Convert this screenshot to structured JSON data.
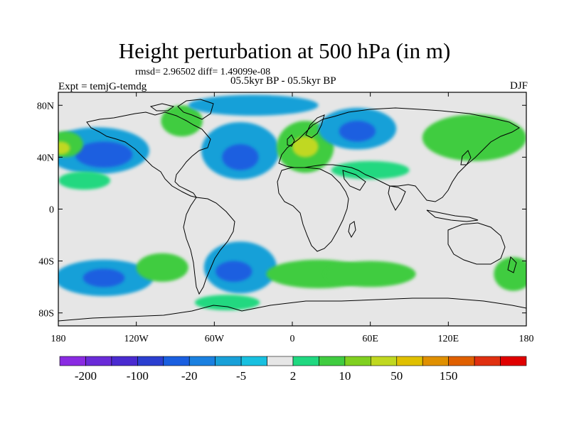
{
  "title": "Height perturbation at 500 hPa (in m)",
  "rmsd_line": "rmsd= 2.96502 diff= 1.49099e-08",
  "period_line": "05.5kyr BP - 05.5kyr BP",
  "expt_label": "Expt = temjG-temdg",
  "season": "DJF",
  "map_data": {
    "projection": "cylindrical-equidistant",
    "lon_range": [
      -180,
      180
    ],
    "lat_range": [
      -90,
      90
    ],
    "lat_ticks": [
      {
        "lat": 80,
        "label": "80N"
      },
      {
        "lat": 40,
        "label": "40N"
      },
      {
        "lat": 0,
        "label": "0"
      },
      {
        "lat": -40,
        "label": "40S"
      },
      {
        "lat": -80,
        "label": "80S"
      }
    ],
    "lon_ticks": [
      {
        "lon": -180,
        "label": "180"
      },
      {
        "lon": -120,
        "label": "120W"
      },
      {
        "lon": -60,
        "label": "60W"
      },
      {
        "lon": 0,
        "label": "0"
      },
      {
        "lon": 60,
        "label": "60E"
      },
      {
        "lon": 120,
        "label": "120E"
      },
      {
        "lon": 180,
        "label": "180"
      }
    ],
    "colorbar": {
      "colors": [
        "#8a2be2",
        "#6a2bd8",
        "#4a2bd0",
        "#2b3fd0",
        "#1a5fe0",
        "#1a80e0",
        "#18a0d8",
        "#18c0e0",
        "#e6e6e6",
        "#20d880",
        "#40cc40",
        "#80d020",
        "#c0d820",
        "#e0c000",
        "#e09000",
        "#e06000",
        "#e03010",
        "#e00000"
      ],
      "labels": [
        {
          "slot": 1,
          "text": "-200"
        },
        {
          "slot": 3,
          "text": "-100"
        },
        {
          "slot": 5,
          "text": "-20"
        },
        {
          "slot": 7,
          "text": "-5"
        },
        {
          "slot": 9,
          "text": "2"
        },
        {
          "slot": 11,
          "text": "10"
        },
        {
          "slot": 13,
          "text": "50"
        },
        {
          "slot": 15,
          "text": "150"
        }
      ]
    },
    "anomaly_regions": [
      {
        "name": "n-pacific-low",
        "lon": -150,
        "lat": 45,
        "rx": 40,
        "ry": 18,
        "level": -5
      },
      {
        "name": "n-pacific-low-core",
        "lon": -145,
        "lat": 42,
        "rx": 22,
        "ry": 10,
        "level": -20
      },
      {
        "name": "alaska-high",
        "lon": -175,
        "lat": 50,
        "rx": 14,
        "ry": 10,
        "level": 10
      },
      {
        "name": "alaska-high-core",
        "lon": -178,
        "lat": 47,
        "rx": 7,
        "ry": 5,
        "level": 50
      },
      {
        "name": "canada-high",
        "lon": -85,
        "lat": 68,
        "rx": 16,
        "ry": 12,
        "level": 10
      },
      {
        "name": "n-atlantic-low",
        "lon": -40,
        "lat": 45,
        "rx": 30,
        "ry": 22,
        "level": -5
      },
      {
        "name": "n-atlantic-low-core",
        "lon": -40,
        "lat": 40,
        "rx": 14,
        "ry": 10,
        "level": -20
      },
      {
        "name": "europe-high",
        "lon": 10,
        "lat": 48,
        "rx": 22,
        "ry": 20,
        "level": 10
      },
      {
        "name": "europe-high-core",
        "lon": 10,
        "lat": 48,
        "rx": 10,
        "ry": 8,
        "level": 50
      },
      {
        "name": "siberia-low",
        "lon": 50,
        "lat": 62,
        "rx": 30,
        "ry": 16,
        "level": -5
      },
      {
        "name": "siberia-low-core",
        "lon": 50,
        "lat": 60,
        "rx": 14,
        "ry": 8,
        "level": -20
      },
      {
        "name": "east-asia-high",
        "lon": 140,
        "lat": 55,
        "rx": 40,
        "ry": 18,
        "level": 10
      },
      {
        "name": "central-asia-band",
        "lon": 60,
        "lat": 30,
        "rx": 30,
        "ry": 7,
        "level": 2
      },
      {
        "name": "sub-pacific-band",
        "lon": -160,
        "lat": 22,
        "rx": 20,
        "ry": 7,
        "level": 2
      },
      {
        "name": "arctic-low",
        "lon": -30,
        "lat": 80,
        "rx": 50,
        "ry": 8,
        "level": -5
      },
      {
        "name": "s-pacific-low",
        "lon": -145,
        "lat": -53,
        "rx": 38,
        "ry": 14,
        "level": -5
      },
      {
        "name": "s-pacific-low-core",
        "lon": -145,
        "lat": -53,
        "rx": 16,
        "ry": 7,
        "level": -20
      },
      {
        "name": "s-pacific-high",
        "lon": -100,
        "lat": -45,
        "rx": 20,
        "ry": 11,
        "level": 10
      },
      {
        "name": "s-atlantic-low",
        "lon": -40,
        "lat": -45,
        "rx": 28,
        "ry": 20,
        "level": -5
      },
      {
        "name": "s-atlantic-low-core",
        "lon": -45,
        "lat": -48,
        "rx": 14,
        "ry": 8,
        "level": -20
      },
      {
        "name": "s-atlantic-high",
        "lon": 20,
        "lat": -50,
        "rx": 40,
        "ry": 11,
        "level": 10
      },
      {
        "name": "indian-ocean-high",
        "lon": 60,
        "lat": -50,
        "rx": 35,
        "ry": 10,
        "level": 10
      },
      {
        "name": "se-pacific-high",
        "lon": 170,
        "lat": -50,
        "rx": 15,
        "ry": 13,
        "level": 10
      },
      {
        "name": "antarctic-high",
        "lon": -50,
        "lat": -72,
        "rx": 25,
        "ry": 6,
        "level": 2
      }
    ]
  }
}
